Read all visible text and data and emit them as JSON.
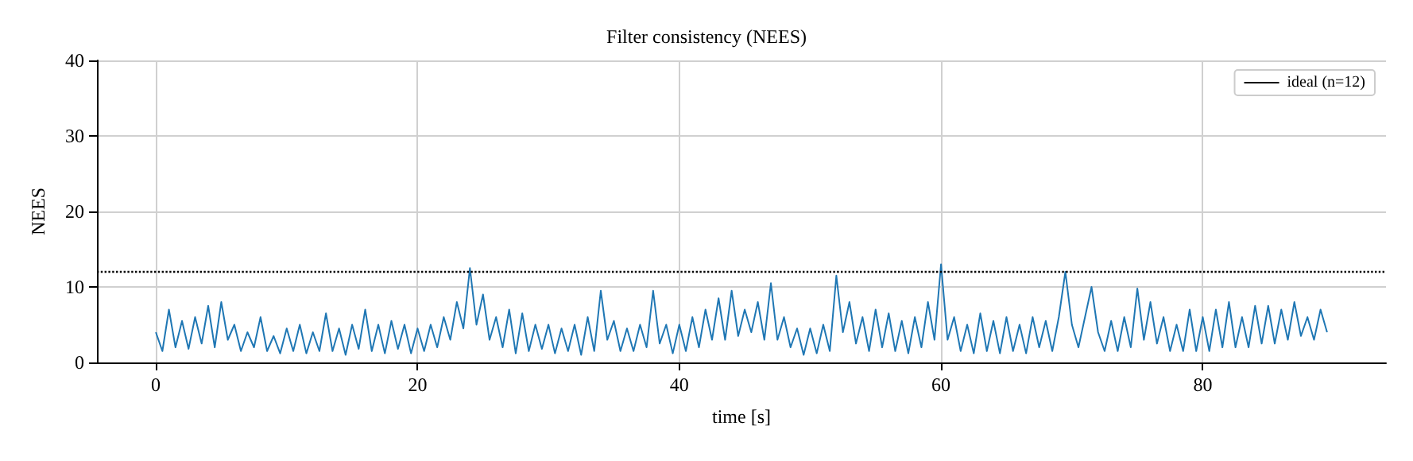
{
  "chart_data": {
    "type": "line",
    "title": "Filter consistency (NEES)",
    "xlabel": "time [s]",
    "ylabel": "NEES",
    "x": [
      0,
      0.5,
      1,
      1.5,
      2,
      2.5,
      3,
      3.5,
      4,
      4.5,
      5,
      5.5,
      6,
      6.5,
      7,
      7.5,
      8,
      8.5,
      9,
      9.5,
      10,
      10.5,
      11,
      11.5,
      12,
      12.5,
      13,
      13.5,
      14,
      14.5,
      15,
      15.5,
      16,
      16.5,
      17,
      17.5,
      18,
      18.5,
      19,
      19.5,
      20,
      20.5,
      21,
      21.5,
      22,
      22.5,
      23,
      23.5,
      24,
      24.5,
      25,
      25.5,
      26,
      26.5,
      27,
      27.5,
      28,
      28.5,
      29,
      29.5,
      30,
      30.5,
      31,
      31.5,
      32,
      32.5,
      33,
      33.5,
      34,
      34.5,
      35,
      35.5,
      36,
      36.5,
      37,
      37.5,
      38,
      38.5,
      39,
      39.5,
      40,
      40.5,
      41,
      41.5,
      42,
      42.5,
      43,
      43.5,
      44,
      44.5,
      45,
      45.5,
      46,
      46.5,
      47,
      47.5,
      48,
      48.5,
      49,
      49.5,
      50,
      50.5,
      51,
      51.5,
      52,
      52.5,
      53,
      53.5,
      54,
      54.5,
      55,
      55.5,
      56,
      56.5,
      57,
      57.5,
      58,
      58.5,
      59,
      59.5,
      60,
      60.5,
      61,
      61.5,
      62,
      62.5,
      63,
      63.5,
      64,
      64.5,
      65,
      65.5,
      66,
      66.5,
      67,
      67.5,
      68,
      68.5,
      69,
      69.5,
      70,
      70.5,
      71,
      71.5,
      72,
      72.5,
      73,
      73.5,
      74,
      74.5,
      75,
      75.5,
      76,
      76.5,
      77,
      77.5,
      78,
      78.5,
      79,
      79.5,
      80,
      80.5,
      81,
      81.5,
      82,
      82.5,
      83,
      83.5,
      84,
      84.5,
      85,
      85.5,
      86,
      86.5,
      87,
      87.5,
      88,
      88.5,
      89,
      89.5
    ],
    "series": [
      {
        "color": "#1f77b4",
        "values": [
          4,
          1.5,
          7,
          2,
          5.5,
          1.8,
          6,
          2.5,
          7.5,
          2,
          8,
          3,
          5,
          1.5,
          4,
          2,
          6,
          1.5,
          3.5,
          1.2,
          4.5,
          1.5,
          5,
          1.2,
          4,
          1.5,
          6.5,
          1.5,
          4.5,
          1,
          5,
          1.8,
          7,
          1.5,
          5,
          1.2,
          5.5,
          1.8,
          5,
          1.2,
          4.5,
          1.5,
          5,
          2,
          6,
          3,
          8,
          4.5,
          12.5,
          5,
          9,
          3,
          6,
          2,
          7,
          1.2,
          6.5,
          1.5,
          5,
          1.8,
          5,
          1.2,
          4.5,
          1.5,
          5,
          1,
          6,
          1.5,
          9.5,
          3,
          5.5,
          1.5,
          4.5,
          1.5,
          5,
          2,
          9.5,
          2.5,
          5,
          1.2,
          5,
          1.5,
          6,
          2,
          7,
          3,
          8.5,
          3,
          9.5,
          3.5,
          7,
          4,
          8,
          3,
          10.5,
          3,
          6,
          2,
          4.5,
          1,
          4.5,
          1.2,
          5,
          1.5,
          11.5,
          4,
          8,
          2.5,
          6,
          1.5,
          7,
          2,
          6.5,
          1.5,
          5.5,
          1.2,
          6,
          2,
          8,
          3,
          13,
          3,
          6,
          1.5,
          5,
          1.2,
          6.5,
          1.5,
          5.5,
          1.2,
          6,
          1.5,
          5,
          1.2,
          6,
          2,
          5.5,
          1.5,
          6,
          12,
          5,
          2,
          6,
          10,
          4,
          1.5,
          5.5,
          1.5,
          6,
          2,
          9.8,
          3,
          8,
          2.5,
          6,
          1.5,
          5,
          1.5,
          7,
          1.5,
          6,
          1.5,
          7,
          2,
          8,
          2,
          6,
          2,
          7.5,
          2.5,
          7.5,
          2.5,
          7,
          3,
          8,
          3.5,
          6,
          3,
          7,
          4
        ]
      }
    ],
    "xlim": [
      -4.5,
      94
    ],
    "xticks": [
      0,
      20,
      40,
      60,
      80
    ],
    "ylim": [
      0,
      40
    ],
    "yticks": [
      0,
      10,
      20,
      30,
      40
    ],
    "ref_lines": [
      {
        "axis": "y",
        "value": 12,
        "label": "ideal (n=12)",
        "color": "#000000",
        "line_style": "dotted"
      }
    ],
    "grid": true,
    "legend": "top right",
    "marker": "none",
    "line_style": "solid"
  }
}
